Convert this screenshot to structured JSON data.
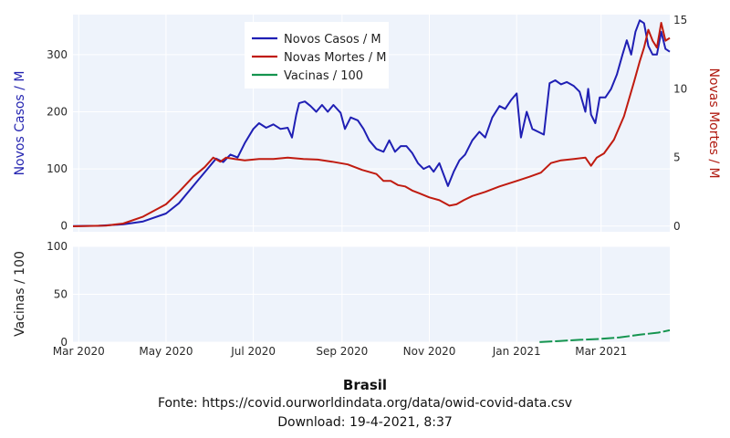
{
  "chart_data": {
    "type": "line",
    "title": "Brasil",
    "source": "Fonte: https://covid.ourworldindata.org/data/owid-covid-data.csv",
    "download": "Download: 19-4-2021, 8:37",
    "x_ticks": [
      "Mar 2020",
      "May 2020",
      "Jul 2020",
      "Sep 2020",
      "Nov 2020",
      "Jan 2021",
      "Mar 2021"
    ],
    "x_range": [
      "2020-02-26",
      "2021-04-18"
    ],
    "top_panel": {
      "ylabel_left": "Novos Casos / M",
      "ylabel_right": "Novas Mortes / M",
      "ylim_left": [
        -10,
        370
      ],
      "ylim_right": [
        -0.4,
        15.4
      ],
      "yticks_left": [
        0,
        100,
        200,
        300
      ],
      "yticks_right": [
        0,
        5,
        10,
        15
      ],
      "legend_position": "top-center",
      "series": [
        {
          "name": "Novos Casos / M",
          "axis": "left",
          "color": "#1f1fb4",
          "points": [
            [
              "2020-02-26",
              0
            ],
            [
              "2020-03-15",
              0.5
            ],
            [
              "2020-04-01",
              3
            ],
            [
              "2020-04-15",
              8
            ],
            [
              "2020-05-01",
              22
            ],
            [
              "2020-05-10",
              40
            ],
            [
              "2020-05-20",
              70
            ],
            [
              "2020-05-30",
              100
            ],
            [
              "2020-06-05",
              118
            ],
            [
              "2020-06-10",
              112
            ],
            [
              "2020-06-15",
              125
            ],
            [
              "2020-06-20",
              120
            ],
            [
              "2020-06-25",
              145
            ],
            [
              "2020-07-01",
              170
            ],
            [
              "2020-07-05",
              180
            ],
            [
              "2020-07-10",
              172
            ],
            [
              "2020-07-15",
              178
            ],
            [
              "2020-07-20",
              170
            ],
            [
              "2020-07-25",
              172
            ],
            [
              "2020-07-28",
              155
            ],
            [
              "2020-07-31",
              195
            ],
            [
              "2020-08-02",
              215
            ],
            [
              "2020-08-06",
              218
            ],
            [
              "2020-08-10",
              210
            ],
            [
              "2020-08-14",
              200
            ],
            [
              "2020-08-18",
              212
            ],
            [
              "2020-08-22",
              200
            ],
            [
              "2020-08-26",
              212
            ],
            [
              "2020-08-31",
              198
            ],
            [
              "2020-09-03",
              170
            ],
            [
              "2020-09-07",
              190
            ],
            [
              "2020-09-12",
              185
            ],
            [
              "2020-09-16",
              170
            ],
            [
              "2020-09-20",
              150
            ],
            [
              "2020-09-25",
              135
            ],
            [
              "2020-09-30",
              130
            ],
            [
              "2020-10-04",
              150
            ],
            [
              "2020-10-08",
              130
            ],
            [
              "2020-10-12",
              140
            ],
            [
              "2020-10-16",
              140
            ],
            [
              "2020-10-20",
              128
            ],
            [
              "2020-10-24",
              110
            ],
            [
              "2020-10-28",
              100
            ],
            [
              "2020-11-01",
              105
            ],
            [
              "2020-11-04",
              95
            ],
            [
              "2020-11-08",
              110
            ],
            [
              "2020-11-11",
              90
            ],
            [
              "2020-11-14",
              70
            ],
            [
              "2020-11-18",
              95
            ],
            [
              "2020-11-22",
              115
            ],
            [
              "2020-11-26",
              125
            ],
            [
              "2020-12-01",
              150
            ],
            [
              "2020-12-06",
              165
            ],
            [
              "2020-12-10",
              155
            ],
            [
              "2020-12-15",
              190
            ],
            [
              "2020-12-20",
              210
            ],
            [
              "2020-12-24",
              205
            ],
            [
              "2020-12-28",
              220
            ],
            [
              "2021-01-01",
              232
            ],
            [
              "2021-01-04",
              155
            ],
            [
              "2021-01-08",
              200
            ],
            [
              "2021-01-12",
              170
            ],
            [
              "2021-01-16",
              165
            ],
            [
              "2021-01-20",
              160
            ],
            [
              "2021-01-24",
              250
            ],
            [
              "2021-01-28",
              255
            ],
            [
              "2021-02-01",
              248
            ],
            [
              "2021-02-05",
              252
            ],
            [
              "2021-02-10",
              245
            ],
            [
              "2021-02-14",
              235
            ],
            [
              "2021-02-18",
              200
            ],
            [
              "2021-02-20",
              240
            ],
            [
              "2021-02-22",
              195
            ],
            [
              "2021-02-25",
              180
            ],
            [
              "2021-02-28",
              225
            ],
            [
              "2021-03-04",
              225
            ],
            [
              "2021-03-08",
              240
            ],
            [
              "2021-03-12",
              265
            ],
            [
              "2021-03-16",
              300
            ],
            [
              "2021-03-19",
              325
            ],
            [
              "2021-03-22",
              300
            ],
            [
              "2021-03-25",
              340
            ],
            [
              "2021-03-28",
              360
            ],
            [
              "2021-03-31",
              355
            ],
            [
              "2021-04-03",
              315
            ],
            [
              "2021-04-06",
              300
            ],
            [
              "2021-04-09",
              300
            ],
            [
              "2021-04-12",
              340
            ],
            [
              "2021-04-15",
              310
            ],
            [
              "2021-04-18",
              305
            ]
          ]
        },
        {
          "name": "Novas Mortes / M",
          "axis": "right",
          "color": "#c01b10",
          "points": [
            [
              "2020-02-26",
              0
            ],
            [
              "2020-03-20",
              0.05
            ],
            [
              "2020-04-01",
              0.2
            ],
            [
              "2020-04-15",
              0.7
            ],
            [
              "2020-05-01",
              1.6
            ],
            [
              "2020-05-10",
              2.5
            ],
            [
              "2020-05-20",
              3.6
            ],
            [
              "2020-05-28",
              4.3
            ],
            [
              "2020-06-03",
              5.0
            ],
            [
              "2020-06-08",
              4.7
            ],
            [
              "2020-06-12",
              5.0
            ],
            [
              "2020-06-18",
              4.9
            ],
            [
              "2020-06-25",
              4.8
            ],
            [
              "2020-07-05",
              4.9
            ],
            [
              "2020-07-15",
              4.9
            ],
            [
              "2020-07-25",
              5.0
            ],
            [
              "2020-08-05",
              4.9
            ],
            [
              "2020-08-15",
              4.85
            ],
            [
              "2020-08-25",
              4.7
            ],
            [
              "2020-09-05",
              4.5
            ],
            [
              "2020-09-15",
              4.1
            ],
            [
              "2020-09-25",
              3.8
            ],
            [
              "2020-09-30",
              3.3
            ],
            [
              "2020-10-05",
              3.3
            ],
            [
              "2020-10-10",
              3.0
            ],
            [
              "2020-10-15",
              2.9
            ],
            [
              "2020-10-20",
              2.6
            ],
            [
              "2020-10-25",
              2.4
            ],
            [
              "2020-11-01",
              2.1
            ],
            [
              "2020-11-08",
              1.9
            ],
            [
              "2020-11-15",
              1.5
            ],
            [
              "2020-11-20",
              1.6
            ],
            [
              "2020-11-25",
              1.9
            ],
            [
              "2020-12-01",
              2.2
            ],
            [
              "2020-12-10",
              2.5
            ],
            [
              "2020-12-20",
              2.9
            ],
            [
              "2021-01-01",
              3.3
            ],
            [
              "2021-01-10",
              3.6
            ],
            [
              "2021-01-18",
              3.9
            ],
            [
              "2021-01-25",
              4.6
            ],
            [
              "2021-02-01",
              4.8
            ],
            [
              "2021-02-10",
              4.9
            ],
            [
              "2021-02-18",
              5.0
            ],
            [
              "2021-02-22",
              4.4
            ],
            [
              "2021-02-26",
              5.0
            ],
            [
              "2021-03-03",
              5.3
            ],
            [
              "2021-03-10",
              6.3
            ],
            [
              "2021-03-17",
              8.0
            ],
            [
              "2021-03-24",
              10.5
            ],
            [
              "2021-03-28",
              12.0
            ],
            [
              "2021-03-31",
              13.0
            ],
            [
              "2021-04-03",
              14.3
            ],
            [
              "2021-04-06",
              13.5
            ],
            [
              "2021-04-09",
              13.0
            ],
            [
              "2021-04-12",
              14.8
            ],
            [
              "2021-04-15",
              13.5
            ],
            [
              "2021-04-18",
              13.7
            ]
          ]
        }
      ]
    },
    "bottom_panel": {
      "ylabel": "Vacinas / 100",
      "ylim": [
        0,
        100
      ],
      "yticks": [
        0,
        50,
        100
      ],
      "series": [
        {
          "name": "Vacinas / 100",
          "color": "#14944f",
          "points": [
            [
              "2021-01-17",
              0.1
            ],
            [
              "2021-01-31",
              1.2
            ],
            [
              "2021-02-14",
              2.5
            ],
            [
              "2021-02-28",
              3.4
            ],
            [
              "2021-03-14",
              5.0
            ],
            [
              "2021-03-28",
              7.8
            ],
            [
              "2021-04-10",
              10.0
            ],
            [
              "2021-04-18",
              12.5
            ]
          ]
        }
      ]
    }
  }
}
